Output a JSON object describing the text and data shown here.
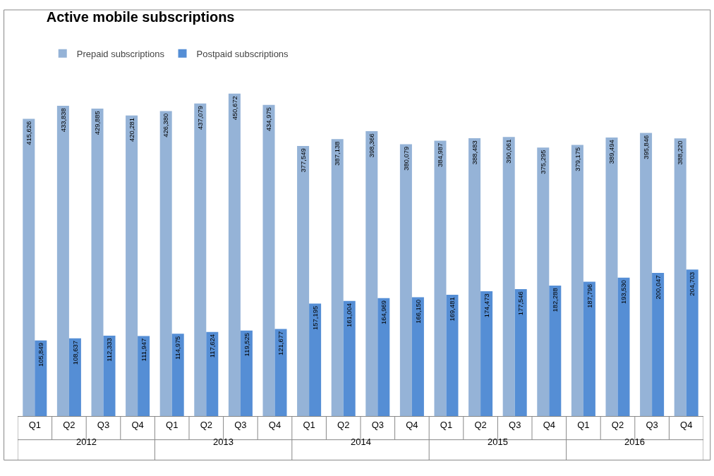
{
  "chart_data": {
    "type": "bar",
    "title": "Active mobile subscriptions",
    "categories": [
      "Q1",
      "Q2",
      "Q3",
      "Q4",
      "Q1",
      "Q2",
      "Q3",
      "Q4",
      "Q1",
      "Q2",
      "Q3",
      "Q4",
      "Q1",
      "Q2",
      "Q3",
      "Q4",
      "Q1",
      "Q2",
      "Q3",
      "Q4"
    ],
    "series": [
      {
        "name": "Prepaid subscriptions",
        "color": "#95b3d7",
        "values": [
          415626,
          433838,
          429885,
          420281,
          426380,
          437079,
          450672,
          434975,
          377549,
          387138,
          398366,
          380079,
          384987,
          388483,
          390061,
          375295,
          379175,
          389494,
          395846,
          388220
        ],
        "value_labels": [
          "415,626",
          "433,838",
          "429,885",
          "420,281",
          "426,380",
          "437,079",
          "450,672",
          "434,975",
          "377,549",
          "387,138",
          "398,366",
          "380,079",
          "384,987",
          "388,483",
          "390,061",
          "375,295",
          "379,175",
          "389,494",
          "395,846",
          "388,220"
        ]
      },
      {
        "name": "Postpaid subscriptions",
        "color": "#558ed5",
        "values": [
          105849,
          108637,
          112333,
          111947,
          114975,
          117624,
          119525,
          121677,
          157195,
          161004,
          164969,
          166150,
          169481,
          174473,
          177546,
          182288,
          187796,
          193530,
          200047,
          204703
        ],
        "value_labels": [
          "105,849",
          "108,637",
          "112,333",
          "111,947",
          "114,975",
          "117,624",
          "119,525",
          "121,677",
          "157,195",
          "161,004",
          "164,969",
          "166,150",
          "169,481",
          "174,473",
          "177,546",
          "182,288",
          "187,796",
          "193,530",
          "200,047",
          "204,703"
        ]
      }
    ],
    "annotations": [
      "2012",
      "2013",
      "2014",
      "2015",
      "2016"
    ],
    "legend": "top left"
  }
}
